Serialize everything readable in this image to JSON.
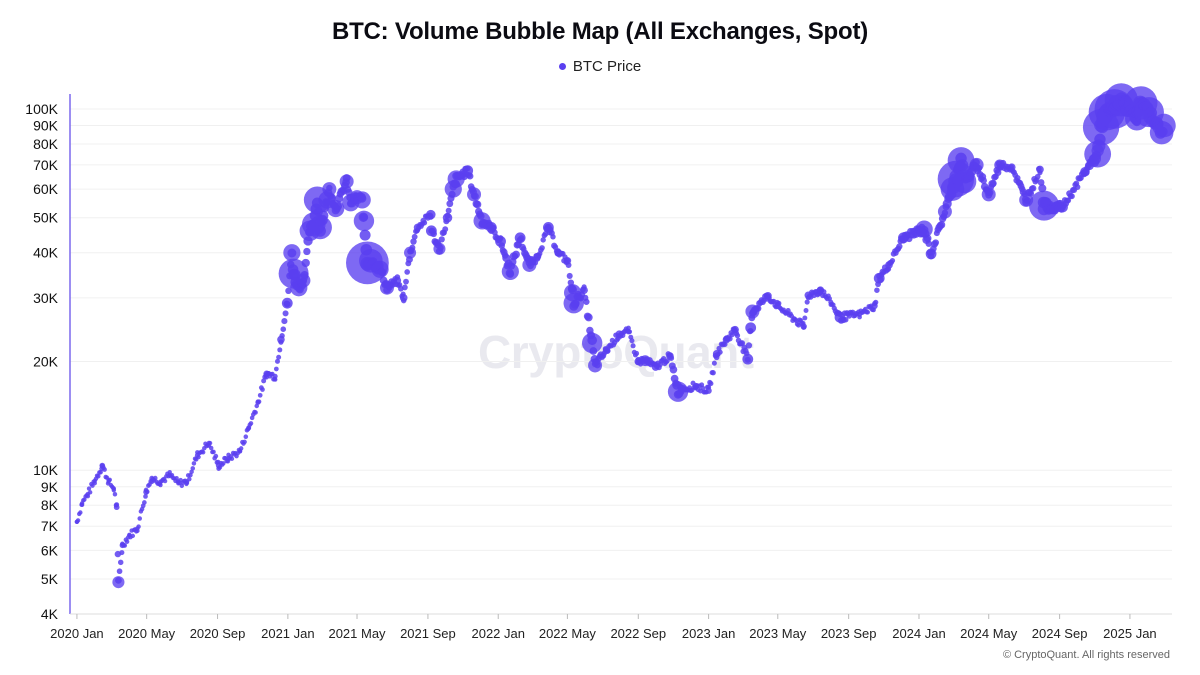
{
  "chart_data": {
    "type": "scatter",
    "title": "BTC: Volume Bubble Map (All Exchanges, Spot)",
    "xlabel": "",
    "ylabel": "",
    "y_scale": "log",
    "ylim": [
      4000,
      110000
    ],
    "xlim": [
      "2019-12-20",
      "2025-03-15"
    ],
    "legend": {
      "position": "top-center",
      "entries": [
        "BTC Price"
      ]
    },
    "grid": "horizontal",
    "colors": {
      "series": "#5a3ff0",
      "axis": "#7b68ee",
      "grid": "#f0f0f0"
    },
    "y_ticks": [
      {
        "value": 4000,
        "label": "4K"
      },
      {
        "value": 5000,
        "label": "5K"
      },
      {
        "value": 6000,
        "label": "6K"
      },
      {
        "value": 7000,
        "label": "7K"
      },
      {
        "value": 8000,
        "label": "8K"
      },
      {
        "value": 9000,
        "label": "9K"
      },
      {
        "value": 10000,
        "label": "10K"
      },
      {
        "value": 20000,
        "label": "20K"
      },
      {
        "value": 30000,
        "label": "30K"
      },
      {
        "value": 40000,
        "label": "40K"
      },
      {
        "value": 50000,
        "label": "50K"
      },
      {
        "value": 60000,
        "label": "60K"
      },
      {
        "value": 70000,
        "label": "70K"
      },
      {
        "value": 80000,
        "label": "80K"
      },
      {
        "value": 90000,
        "label": "90K"
      },
      {
        "value": 100000,
        "label": "100K"
      }
    ],
    "x_ticks": [
      {
        "date": "2020-01-01",
        "label": "2020 Jan"
      },
      {
        "date": "2020-05-01",
        "label": "2020 May"
      },
      {
        "date": "2020-09-01",
        "label": "2020 Sep"
      },
      {
        "date": "2021-01-01",
        "label": "2021 Jan"
      },
      {
        "date": "2021-05-01",
        "label": "2021 May"
      },
      {
        "date": "2021-09-01",
        "label": "2021 Sep"
      },
      {
        "date": "2022-01-01",
        "label": "2022 Jan"
      },
      {
        "date": "2022-05-01",
        "label": "2022 May"
      },
      {
        "date": "2022-09-01",
        "label": "2022 Sep"
      },
      {
        "date": "2023-01-01",
        "label": "2023 Jan"
      },
      {
        "date": "2023-05-01",
        "label": "2023 May"
      },
      {
        "date": "2023-09-01",
        "label": "2023 Sep"
      },
      {
        "date": "2024-01-01",
        "label": "2024 Jan"
      },
      {
        "date": "2024-05-01",
        "label": "2024 May"
      },
      {
        "date": "2024-09-01",
        "label": "2024 Sep"
      },
      {
        "date": "2025-01-01",
        "label": "2025 Jan"
      }
    ],
    "series": [
      {
        "name": "BTC Price",
        "points": [
          {
            "date": "2020-01-01",
            "price": 7200,
            "volume": 1
          },
          {
            "date": "2020-01-10",
            "price": 8100,
            "volume": 1
          },
          {
            "date": "2020-01-20",
            "price": 8600,
            "volume": 1
          },
          {
            "date": "2020-02-01",
            "price": 9350,
            "volume": 1
          },
          {
            "date": "2020-02-14",
            "price": 10300,
            "volume": 1.2
          },
          {
            "date": "2020-02-25",
            "price": 9300,
            "volume": 1
          },
          {
            "date": "2020-03-05",
            "price": 8900,
            "volume": 1
          },
          {
            "date": "2020-03-10",
            "price": 7900,
            "volume": 1.2
          },
          {
            "date": "2020-03-13",
            "price": 4900,
            "volume": 2.2
          },
          {
            "date": "2020-03-20",
            "price": 6200,
            "volume": 1.2
          },
          {
            "date": "2020-04-01",
            "price": 6600,
            "volume": 1
          },
          {
            "date": "2020-04-15",
            "price": 6900,
            "volume": 1
          },
          {
            "date": "2020-04-30",
            "price": 8700,
            "volume": 1.2
          },
          {
            "date": "2020-05-10",
            "price": 9500,
            "volume": 1.1
          },
          {
            "date": "2020-05-25",
            "price": 9300,
            "volume": 1
          },
          {
            "date": "2020-06-10",
            "price": 9700,
            "volume": 1
          },
          {
            "date": "2020-06-25",
            "price": 9200,
            "volume": 1
          },
          {
            "date": "2020-07-10",
            "price": 9300,
            "volume": 1
          },
          {
            "date": "2020-07-28",
            "price": 11000,
            "volume": 1.1
          },
          {
            "date": "2020-08-17",
            "price": 11900,
            "volume": 1
          },
          {
            "date": "2020-09-03",
            "price": 10300,
            "volume": 1.2
          },
          {
            "date": "2020-09-20",
            "price": 10800,
            "volume": 1
          },
          {
            "date": "2020-10-10",
            "price": 11300,
            "volume": 1
          },
          {
            "date": "2020-10-25",
            "price": 13100,
            "volume": 1.1
          },
          {
            "date": "2020-11-10",
            "price": 15400,
            "volume": 1.1
          },
          {
            "date": "2020-11-25",
            "price": 18500,
            "volume": 1.3
          },
          {
            "date": "2020-12-10",
            "price": 18200,
            "volume": 1.1
          },
          {
            "date": "2020-12-20",
            "price": 23000,
            "volume": 1.5
          },
          {
            "date": "2020-12-31",
            "price": 29000,
            "volume": 2
          },
          {
            "date": "2021-01-08",
            "price": 40000,
            "volume": 3
          },
          {
            "date": "2021-01-11",
            "price": 35000,
            "volume": 5
          },
          {
            "date": "2021-01-20",
            "price": 32000,
            "volume": 3
          },
          {
            "date": "2021-01-28",
            "price": 33500,
            "volume": 2.5
          },
          {
            "date": "2021-02-08",
            "price": 46000,
            "volume": 3.5
          },
          {
            "date": "2021-02-15",
            "price": 48000,
            "volume": 4
          },
          {
            "date": "2021-02-21",
            "price": 56000,
            "volume": 4.5
          },
          {
            "date": "2021-02-26",
            "price": 47000,
            "volume": 4
          },
          {
            "date": "2021-03-10",
            "price": 56000,
            "volume": 3
          },
          {
            "date": "2021-03-14",
            "price": 60000,
            "volume": 2.5
          },
          {
            "date": "2021-03-25",
            "price": 53000,
            "volume": 3
          },
          {
            "date": "2021-04-13",
            "price": 63000,
            "volume": 2.5
          },
          {
            "date": "2021-04-20",
            "price": 55000,
            "volume": 3
          },
          {
            "date": "2021-05-01",
            "price": 57000,
            "volume": 2.5
          },
          {
            "date": "2021-05-10",
            "price": 56000,
            "volume": 3
          },
          {
            "date": "2021-05-13",
            "price": 49000,
            "volume": 3.5
          },
          {
            "date": "2021-05-19",
            "price": 37500,
            "volume": 7
          },
          {
            "date": "2021-05-25",
            "price": 38000,
            "volume": 4
          },
          {
            "date": "2021-06-10",
            "price": 36000,
            "volume": 3
          },
          {
            "date": "2021-06-22",
            "price": 32000,
            "volume": 2.5
          },
          {
            "date": "2021-07-10",
            "price": 33500,
            "volume": 1.5
          },
          {
            "date": "2021-07-21",
            "price": 30000,
            "volume": 1.5
          },
          {
            "date": "2021-08-01",
            "price": 40000,
            "volume": 2.2
          },
          {
            "date": "2021-08-14",
            "price": 47000,
            "volume": 1.5
          },
          {
            "date": "2021-09-06",
            "price": 51000,
            "volume": 1.8
          },
          {
            "date": "2021-09-07",
            "price": 46000,
            "volume": 2
          },
          {
            "date": "2021-09-21",
            "price": 41000,
            "volume": 2.2
          },
          {
            "date": "2021-10-05",
            "price": 50000,
            "volume": 1.8
          },
          {
            "date": "2021-10-15",
            "price": 60000,
            "volume": 3
          },
          {
            "date": "2021-10-20",
            "price": 64000,
            "volume": 3
          },
          {
            "date": "2021-11-09",
            "price": 67500,
            "volume": 2
          },
          {
            "date": "2021-11-20",
            "price": 58000,
            "volume": 2.5
          },
          {
            "date": "2021-12-04",
            "price": 49000,
            "volume": 3
          },
          {
            "date": "2021-12-20",
            "price": 47000,
            "volume": 2
          },
          {
            "date": "2022-01-05",
            "price": 43000,
            "volume": 2
          },
          {
            "date": "2022-01-22",
            "price": 35500,
            "volume": 3
          },
          {
            "date": "2022-02-08",
            "price": 44000,
            "volume": 2
          },
          {
            "date": "2022-02-24",
            "price": 37000,
            "volume": 2.5
          },
          {
            "date": "2022-03-10",
            "price": 39000,
            "volume": 1.5
          },
          {
            "date": "2022-03-29",
            "price": 47000,
            "volume": 2
          },
          {
            "date": "2022-04-15",
            "price": 40000,
            "volume": 1.5
          },
          {
            "date": "2022-05-01",
            "price": 38000,
            "volume": 1.5
          },
          {
            "date": "2022-05-10",
            "price": 31000,
            "volume": 3
          },
          {
            "date": "2022-05-12",
            "price": 29000,
            "volume": 3.5
          },
          {
            "date": "2022-05-30",
            "price": 31500,
            "volume": 1.5
          },
          {
            "date": "2022-06-13",
            "price": 22500,
            "volume": 3.5
          },
          {
            "date": "2022-06-18",
            "price": 19500,
            "volume": 2.5
          },
          {
            "date": "2022-07-08",
            "price": 21500,
            "volume": 1.5
          },
          {
            "date": "2022-07-30",
            "price": 23800,
            "volume": 1.5
          },
          {
            "date": "2022-08-15",
            "price": 24200,
            "volume": 1.2
          },
          {
            "date": "2022-09-01",
            "price": 20000,
            "volume": 1.5
          },
          {
            "date": "2022-09-13",
            "price": 20100,
            "volume": 2
          },
          {
            "date": "2022-10-01",
            "price": 19300,
            "volume": 1.5
          },
          {
            "date": "2022-10-26",
            "price": 20700,
            "volume": 1.5
          },
          {
            "date": "2022-11-09",
            "price": 16500,
            "volume": 3.5
          },
          {
            "date": "2022-11-15",
            "price": 16800,
            "volume": 1.5
          },
          {
            "date": "2022-12-10",
            "price": 17100,
            "volume": 1.3
          },
          {
            "date": "2023-01-01",
            "price": 16600,
            "volume": 1.3
          },
          {
            "date": "2023-01-15",
            "price": 21000,
            "volume": 1.5
          },
          {
            "date": "2023-02-01",
            "price": 23000,
            "volume": 1.5
          },
          {
            "date": "2023-02-16",
            "price": 24500,
            "volume": 1.5
          },
          {
            "date": "2023-03-10",
            "price": 20300,
            "volume": 2
          },
          {
            "date": "2023-03-15",
            "price": 24800,
            "volume": 2
          },
          {
            "date": "2023-03-18",
            "price": 27500,
            "volume": 2.5
          },
          {
            "date": "2023-04-14",
            "price": 30400,
            "volume": 1.5
          },
          {
            "date": "2023-05-01",
            "price": 28500,
            "volume": 1.3
          },
          {
            "date": "2023-06-15",
            "price": 25000,
            "volume": 1.3
          },
          {
            "date": "2023-06-23",
            "price": 30500,
            "volume": 1.5
          },
          {
            "date": "2023-07-14",
            "price": 31500,
            "volume": 1.5
          },
          {
            "date": "2023-08-01",
            "price": 29200,
            "volume": 1.1
          },
          {
            "date": "2023-08-17",
            "price": 26500,
            "volume": 2
          },
          {
            "date": "2023-09-20",
            "price": 27000,
            "volume": 1.1
          },
          {
            "date": "2023-10-16",
            "price": 28500,
            "volume": 1.3
          },
          {
            "date": "2023-10-24",
            "price": 34000,
            "volume": 2
          },
          {
            "date": "2023-11-10",
            "price": 37000,
            "volume": 1.5
          },
          {
            "date": "2023-12-05",
            "price": 44000,
            "volume": 2
          },
          {
            "date": "2024-01-10",
            "price": 46500,
            "volume": 3
          },
          {
            "date": "2024-01-22",
            "price": 39700,
            "volume": 2
          },
          {
            "date": "2024-02-15",
            "price": 52000,
            "volume": 2.5
          },
          {
            "date": "2024-02-28",
            "price": 60000,
            "volume": 4
          },
          {
            "date": "2024-03-05",
            "price": 64000,
            "volume": 6
          },
          {
            "date": "2024-03-14",
            "price": 72000,
            "volume": 4.5
          },
          {
            "date": "2024-03-20",
            "price": 63000,
            "volume": 4
          },
          {
            "date": "2024-04-10",
            "price": 70000,
            "volume": 2.5
          },
          {
            "date": "2024-05-01",
            "price": 58000,
            "volume": 2.5
          },
          {
            "date": "2024-05-20",
            "price": 70000,
            "volume": 2
          },
          {
            "date": "2024-06-10",
            "price": 69000,
            "volume": 1.5
          },
          {
            "date": "2024-07-05",
            "price": 56000,
            "volume": 2.5
          },
          {
            "date": "2024-07-29",
            "price": 68000,
            "volume": 1.5
          },
          {
            "date": "2024-08-05",
            "price": 54000,
            "volume": 5
          },
          {
            "date": "2024-09-06",
            "price": 53500,
            "volume": 2
          },
          {
            "date": "2024-10-15",
            "price": 67000,
            "volume": 1.8
          },
          {
            "date": "2024-11-06",
            "price": 75000,
            "volume": 4.5
          },
          {
            "date": "2024-11-12",
            "price": 89000,
            "volume": 6
          },
          {
            "date": "2024-11-22",
            "price": 98000,
            "volume": 6
          },
          {
            "date": "2024-12-05",
            "price": 100000,
            "volume": 6.5
          },
          {
            "date": "2024-12-17",
            "price": 106000,
            "volume": 5.5
          },
          {
            "date": "2025-01-13",
            "price": 94000,
            "volume": 4
          },
          {
            "date": "2025-01-20",
            "price": 104000,
            "volume": 5.5
          },
          {
            "date": "2025-02-03",
            "price": 98000,
            "volume": 5
          },
          {
            "date": "2025-02-25",
            "price": 86000,
            "volume": 4
          },
          {
            "date": "2025-03-01",
            "price": 90000,
            "volume": 4
          }
        ]
      }
    ],
    "watermark": "CryptoQuant",
    "copyright": "© CryptoQuant. All rights reserved"
  }
}
